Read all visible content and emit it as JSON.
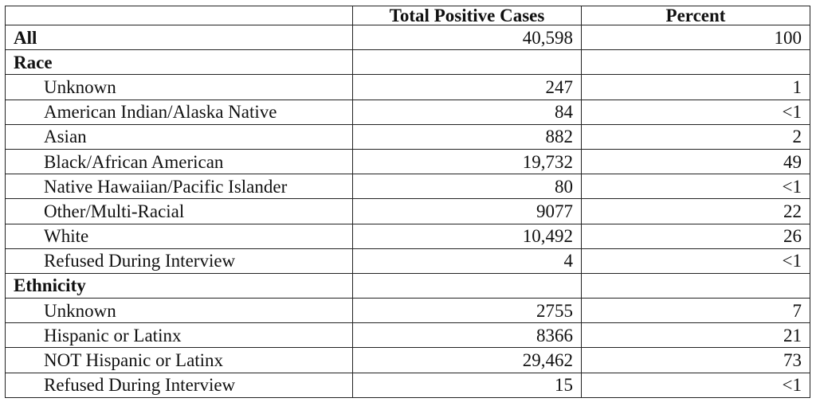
{
  "headers": [
    "",
    "Total Positive Cases",
    "Percent"
  ],
  "rows": [
    {
      "label": "All",
      "cases": "40,598",
      "percent": "100",
      "kind": "section"
    },
    {
      "label": "Race",
      "cases": "",
      "percent": "",
      "kind": "section"
    },
    {
      "label": "Unknown",
      "cases": "247",
      "percent": "1",
      "kind": "item"
    },
    {
      "label": "American Indian/Alaska Native",
      "cases": "84",
      "percent": "<1",
      "kind": "item"
    },
    {
      "label": "Asian",
      "cases": "882",
      "percent": "2",
      "kind": "item"
    },
    {
      "label": "Black/African American",
      "cases": "19,732",
      "percent": "49",
      "kind": "item"
    },
    {
      "label": "Native Hawaiian/Pacific Islander",
      "cases": "80",
      "percent": "<1",
      "kind": "item"
    },
    {
      "label": "Other/Multi-Racial",
      "cases": "9077",
      "percent": "22",
      "kind": "item"
    },
    {
      "label": "White",
      "cases": "10,492",
      "percent": "26",
      "kind": "item"
    },
    {
      "label": "Refused During Interview",
      "cases": "4",
      "percent": "<1",
      "kind": "item"
    },
    {
      "label": "Ethnicity",
      "cases": "",
      "percent": "",
      "kind": "section"
    },
    {
      "label": "Unknown",
      "cases": "2755",
      "percent": "7",
      "kind": "item"
    },
    {
      "label": "Hispanic or Latinx",
      "cases": "8366",
      "percent": "21",
      "kind": "item"
    },
    {
      "label": "NOT Hispanic or Latinx",
      "cases": "29,462",
      "percent": "73",
      "kind": "item"
    },
    {
      "label": "Refused During Interview",
      "cases": "15",
      "percent": "<1",
      "kind": "item"
    }
  ]
}
